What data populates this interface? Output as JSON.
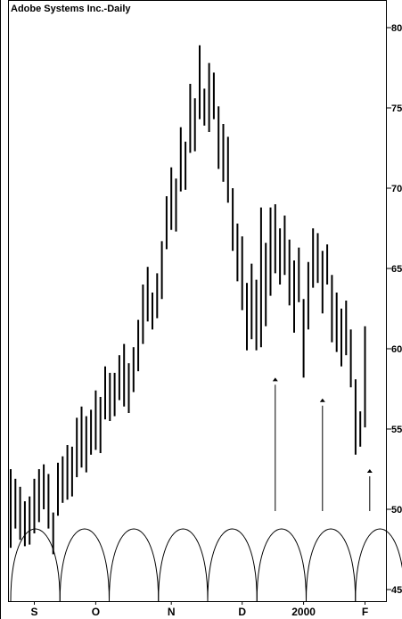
{
  "chart_data": {
    "type": "bar",
    "subtype": "ohlc-daily-range",
    "title": "Adobe Systems Inc.-Daily",
    "ylim": [
      44.5,
      81
    ],
    "y_ticks": [
      "80",
      "75",
      "70",
      "65",
      "60",
      "55",
      "50",
      "45"
    ],
    "y_tick_values": [
      80,
      75,
      70,
      65,
      60,
      55,
      50,
      45
    ],
    "x_labels": [
      "S",
      "O",
      "N",
      "D",
      "2000",
      "F"
    ],
    "x_label_bar_index": [
      5,
      18,
      34,
      49,
      62,
      75
    ],
    "grid": false,
    "legend": "none",
    "bars": [
      [
        52.5,
        47.6
      ],
      [
        51.9,
        48.8
      ],
      [
        51.4,
        48.1
      ],
      [
        50.5,
        47.7
      ],
      [
        50.8,
        47.8
      ],
      [
        51.9,
        48.5
      ],
      [
        52.5,
        49.2
      ],
      [
        52.8,
        50.0
      ],
      [
        52.2,
        48.8
      ],
      [
        49.8,
        47.2
      ],
      [
        52.9,
        49.6
      ],
      [
        53.3,
        50.4
      ],
      [
        54.0,
        50.6
      ],
      [
        53.9,
        50.8
      ],
      [
        55.7,
        52.0
      ],
      [
        56.4,
        52.6
      ],
      [
        55.8,
        52.3
      ],
      [
        56.2,
        53.4
      ],
      [
        57.4,
        53.7
      ],
      [
        57.0,
        53.5
      ],
      [
        58.9,
        55.6
      ],
      [
        58.5,
        55.5
      ],
      [
        58.5,
        55.8
      ],
      [
        59.6,
        56.8
      ],
      [
        60.3,
        56.4
      ],
      [
        59.1,
        56.0
      ],
      [
        60.1,
        57.3
      ],
      [
        61.8,
        58.6
      ],
      [
        64.0,
        60.3
      ],
      [
        65.1,
        61.7
      ],
      [
        63.5,
        61.2
      ],
      [
        64.7,
        61.9
      ],
      [
        66.7,
        63.1
      ],
      [
        69.5,
        66.2
      ],
      [
        71.3,
        67.4
      ],
      [
        70.6,
        67.3
      ],
      [
        73.8,
        69.8
      ],
      [
        72.9,
        69.9
      ],
      [
        76.5,
        72.2
      ],
      [
        75.6,
        72.3
      ],
      [
        78.9,
        74.3
      ],
      [
        76.2,
        73.9
      ],
      [
        77.8,
        73.5
      ],
      [
        77.2,
        74.3
      ],
      [
        75.1,
        71.2
      ],
      [
        74.0,
        70.4
      ],
      [
        73.2,
        69.1
      ],
      [
        70.0,
        66.1
      ],
      [
        67.8,
        64.2
      ],
      [
        67.0,
        62.4
      ],
      [
        64.1,
        59.9
      ],
      [
        65.3,
        60.6
      ],
      [
        64.3,
        59.9
      ],
      [
        68.8,
        60.1
      ],
      [
        66.6,
        61.4
      ],
      [
        68.8,
        63.3
      ],
      [
        69.0,
        64.7
      ],
      [
        67.5,
        64.0
      ],
      [
        68.3,
        64.6
      ],
      [
        66.8,
        62.7
      ],
      [
        65.5,
        61.0
      ],
      [
        66.3,
        62.9
      ],
      [
        63.1,
        58.2
      ],
      [
        65.4,
        61.2
      ],
      [
        67.5,
        63.8
      ],
      [
        67.2,
        64.1
      ],
      [
        66.1,
        62.2
      ],
      [
        66.5,
        64.0
      ],
      [
        64.6,
        60.4
      ],
      [
        63.5,
        59.8
      ],
      [
        62.5,
        58.9
      ],
      [
        63.0,
        59.6
      ],
      [
        61.2,
        57.6
      ],
      [
        58.1,
        53.4
      ],
      [
        56.1,
        53.9
      ],
      [
        61.4,
        55.1
      ]
    ],
    "markers": [
      {
        "bar_index": 56,
        "tip": 58.2
      },
      {
        "bar_index": 66,
        "tip": 56.9
      },
      {
        "bar_index": 76,
        "tip": 52.5
      }
    ],
    "cycle_indicator": {
      "type": "arcs",
      "count": 8
    }
  }
}
